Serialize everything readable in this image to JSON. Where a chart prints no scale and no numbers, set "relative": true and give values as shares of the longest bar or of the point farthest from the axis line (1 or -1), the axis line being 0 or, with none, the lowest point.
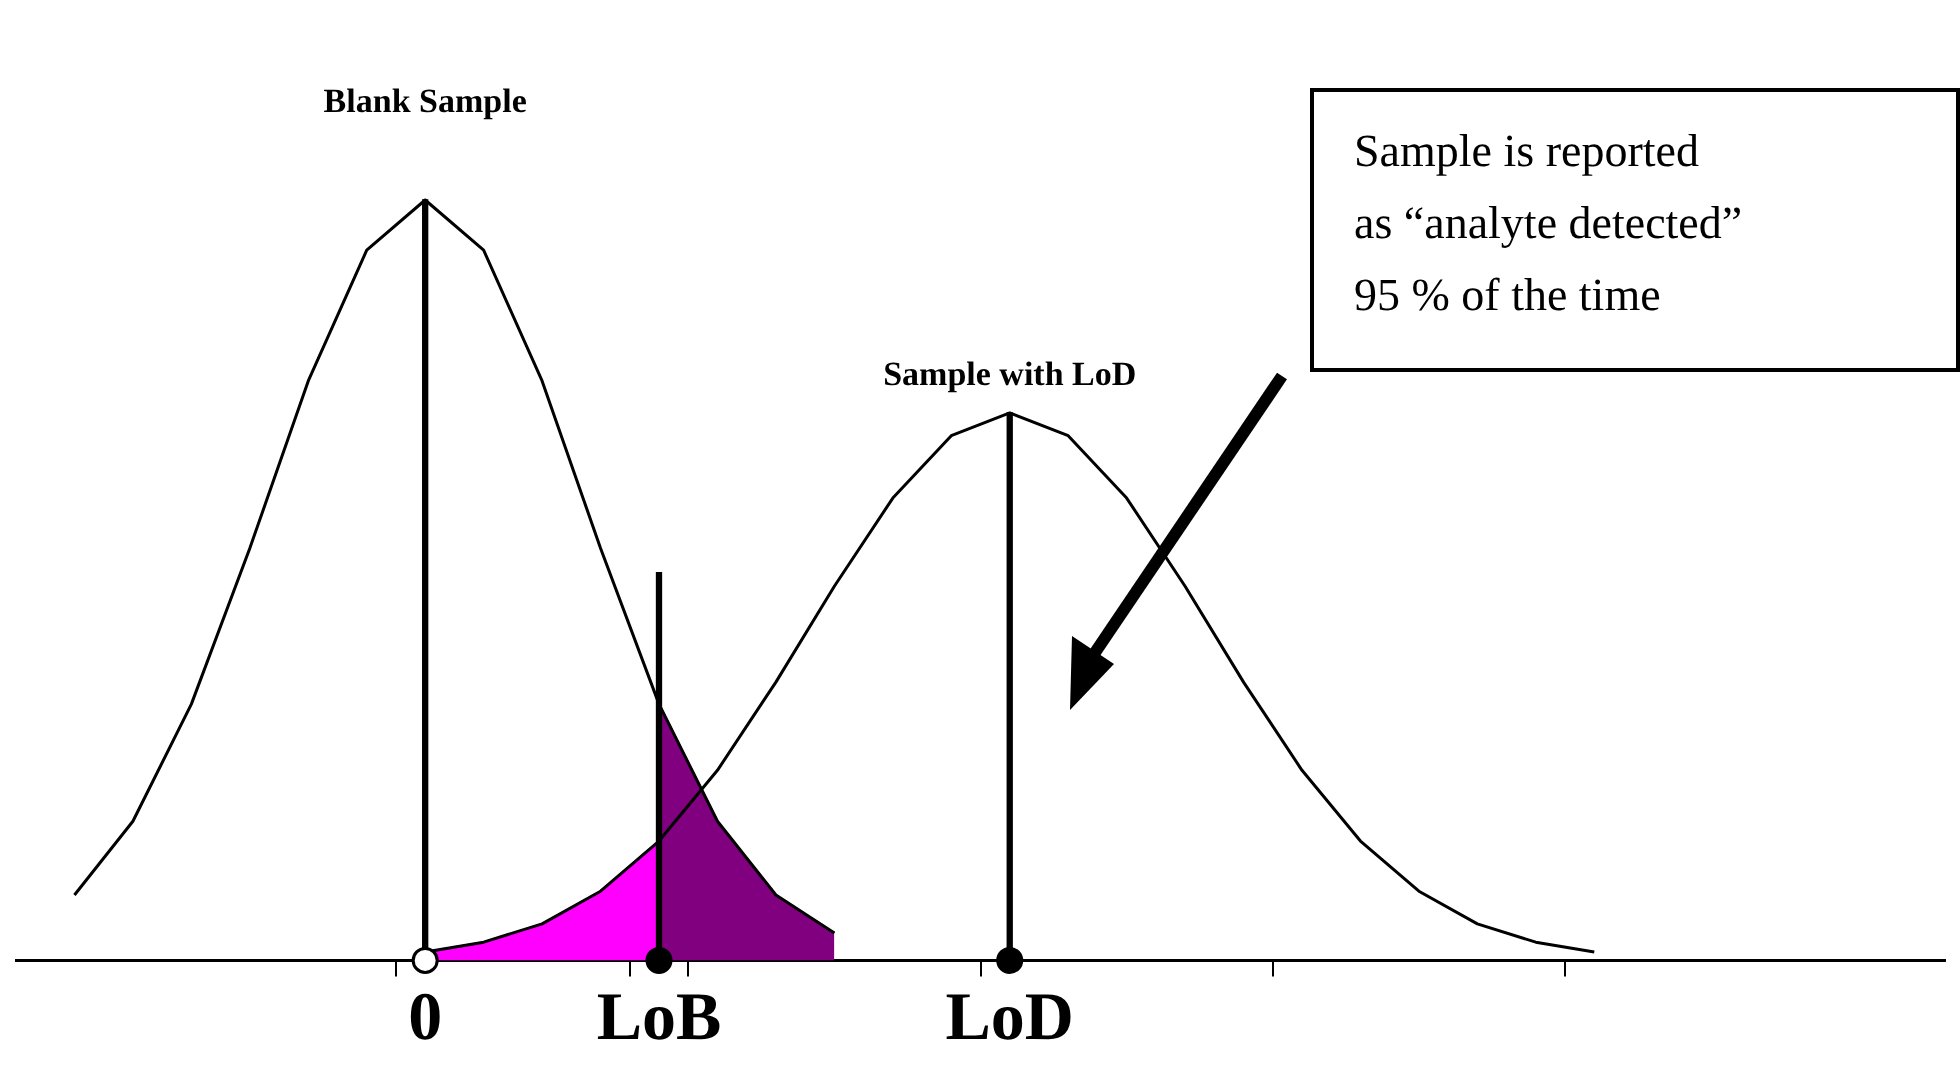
{
  "chart_data": {
    "type": "line",
    "relative": true,
    "categories": [
      null,
      null,
      null,
      null,
      null,
      null,
      null,
      "0",
      null,
      null,
      null,
      "LoB",
      null,
      null,
      null,
      null,
      null,
      "LoD",
      null,
      null,
      null,
      null,
      null,
      null,
      null,
      null,
      null,
      null,
      null,
      null,
      null,
      null,
      null,
      null
    ],
    "annotations": [
      {
        "text": "Blank Sample",
        "x": "0",
        "y": 1
      },
      {
        "text": "Sample with LoD",
        "x": "LoD",
        "y": 0.72
      },
      "Sample is reported\nas “analyte detected”\n95 % of the time"
    ],
    "series": [
      {
        "type": "area",
        "color": "#ff00ff",
        "values": [
          null,
          null,
          null,
          null,
          null,
          null,
          null,
          0.011,
          0.024,
          0.048,
          0.091,
          0.157,
          null,
          null,
          null,
          null,
          null,
          null,
          null,
          null,
          null,
          null,
          null,
          null,
          null,
          null,
          null,
          null,
          null,
          null,
          null,
          null,
          null,
          null
        ]
      },
      {
        "type": "area",
        "color": "#800080",
        "values": [
          null,
          null,
          null,
          null,
          null,
          null,
          null,
          null,
          null,
          null,
          null,
          0.337,
          0.183,
          0.086,
          0.036,
          null,
          null,
          null,
          null,
          null,
          null,
          null,
          null,
          null,
          null,
          null,
          null,
          null,
          null,
          null,
          null,
          null,
          null,
          null
        ]
      },
      {
        "color": "#000000",
        "marker": "none",
        "values": [
          null,
          0.086,
          0.183,
          0.337,
          0.542,
          0.762,
          0.934,
          1,
          0.934,
          0.762,
          0.542,
          0.337,
          0.183,
          0.086,
          0.036,
          null,
          null,
          null,
          null,
          null,
          null,
          null,
          null,
          null,
          null,
          null,
          null,
          null,
          null,
          null,
          null,
          null,
          null,
          null
        ]
      },
      {
        "color": "#000000",
        "marker": "none",
        "values": [
          null,
          null,
          null,
          null,
          null,
          null,
          null,
          0.011,
          0.024,
          0.048,
          0.091,
          0.157,
          0.25,
          0.366,
          0.492,
          0.608,
          0.69,
          0.72,
          0.69,
          0.608,
          0.492,
          0.366,
          0.25,
          0.157,
          0.091,
          0.048,
          0.024,
          0.011,
          null,
          null,
          null,
          null,
          null,
          null
        ]
      },
      {
        "type": "bar",
        "color": "#000000",
        "values": [
          null,
          null,
          null,
          null,
          null,
          null,
          null,
          1,
          null,
          null,
          null,
          0.51,
          null,
          null,
          null,
          null,
          null,
          0.72,
          null,
          null,
          null,
          null,
          null,
          null,
          null,
          null,
          null,
          null,
          null,
          null,
          null,
          null,
          null,
          null
        ]
      },
      {
        "type": "scatter",
        "color": "#ffffff",
        "marker": "circle",
        "values": [
          null,
          null,
          null,
          null,
          null,
          null,
          null,
          0,
          null,
          null,
          null,
          null,
          null,
          null,
          null,
          null,
          null,
          null,
          null,
          null,
          null,
          null,
          null,
          null,
          null,
          null,
          null,
          null,
          null,
          null,
          null,
          null,
          null,
          null
        ]
      },
      {
        "type": "scatter",
        "color": "#000000",
        "marker": "circle",
        "values": [
          null,
          null,
          null,
          null,
          null,
          null,
          null,
          null,
          null,
          null,
          null,
          0,
          null,
          null,
          null,
          null,
          null,
          0,
          null,
          null,
          null,
          null,
          null,
          null,
          null,
          null,
          null,
          null,
          null,
          null,
          null,
          null,
          null,
          null
        ]
      }
    ]
  }
}
